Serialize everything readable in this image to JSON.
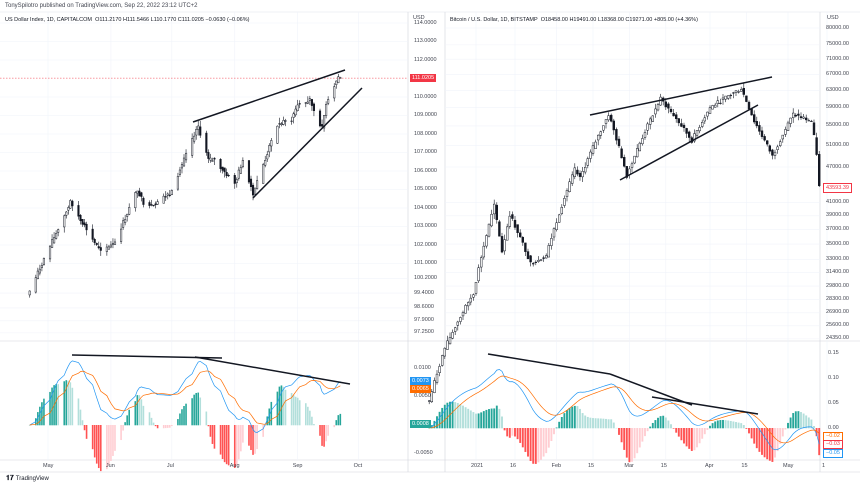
{
  "publisher": "TonySpilotro published on TradingView.com, Sep 22, 2022 23:12 UTC+2",
  "footer": {
    "brand": "TradingView",
    "logo_icon": "tradingview-logo-icon"
  },
  "colors": {
    "up": "#26a69a",
    "down": "#ef5350",
    "candle": "#131722",
    "macd": "#2196f3",
    "signal": "#ff6d00",
    "hist_up": "#26a69a",
    "hist_up_fade": "#b2dfdb",
    "hist_dn": "#ff5252",
    "hist_dn_fade": "#ffcdd2",
    "trendline": "#131722"
  },
  "chart_data": [
    {
      "type": "candlestick",
      "title": "US Dollar Index, 1D, CAPITALCOM",
      "legend": {
        "symbol": "US Dollar Index, 1D, CAPITALCOM",
        "open": "O111.2170",
        "high": "H111.5466",
        "low": "L110.1770",
        "close": "C111.0205",
        "change": "−0.0630 (−0.06%)"
      },
      "currency": "USD",
      "y_ticks": [
        "114.0000",
        "113.0000",
        "112.0000",
        "110.0000",
        "109.0000",
        "108.0000",
        "107.0000",
        "106.0000",
        "105.0000",
        "104.0000",
        "103.0000",
        "102.0000",
        "101.0000",
        "100.2000",
        "99.4000",
        "98.6000",
        "97.9000",
        "97.2500"
      ],
      "last_price_label": "111.0205",
      "x_ticks": [
        {
          "label": "May",
          "date": "2022-05-01"
        },
        {
          "label": "Jun",
          "date": "2022-06-01"
        },
        {
          "label": "Jul",
          "date": "2022-07-01"
        },
        {
          "label": "Aug",
          "date": "2022-08-01"
        },
        {
          "label": "Sep",
          "date": "2022-09-01"
        },
        {
          "label": "Oct",
          "date": "2022-10-01"
        }
      ],
      "close_keypoints": [
        [
          "2022-04-22",
          99.5
        ],
        [
          "2022-04-28",
          101.0
        ],
        [
          "2022-05-12",
          104.3
        ],
        [
          "2022-05-27",
          101.6
        ],
        [
          "2022-06-03",
          102.2
        ],
        [
          "2022-06-14",
          105.0
        ],
        [
          "2022-06-17",
          104.3
        ],
        [
          "2022-06-22",
          104.2
        ],
        [
          "2022-06-30",
          104.8
        ],
        [
          "2022-07-14",
          108.4
        ],
        [
          "2022-07-19",
          106.6
        ],
        [
          "2022-07-22",
          106.6
        ],
        [
          "2022-08-01",
          105.3
        ],
        [
          "2022-08-05",
          106.6
        ],
        [
          "2022-08-10",
          104.8
        ],
        [
          "2022-08-22",
          108.5
        ],
        [
          "2022-08-29",
          108.8
        ],
        [
          "2022-09-01",
          109.6
        ],
        [
          "2022-09-07",
          109.8
        ],
        [
          "2022-09-13",
          108.3
        ],
        [
          "2022-09-15",
          109.7
        ],
        [
          "2022-09-21",
          111.1
        ],
        [
          "2022-09-22",
          111.02
        ]
      ],
      "macd": {
        "y_ticks": [
          "0.0100",
          "0.0050",
          "-0.0050"
        ],
        "macd_label": "0.0073",
        "signal_label": "0.0065",
        "hist_label": "0.0008"
      }
    },
    {
      "type": "candlestick",
      "title": "Bitcoin / U.S. Dollar, 1D, BITSTAMP",
      "legend": {
        "symbol": "Bitcoin / U.S. Dollar, 1D, BITSTAMP",
        "open": "O18458.00",
        "high": "H19491.00",
        "low": "L18368.00",
        "close": "C19271.00",
        "change": "+805.00 (+4.36%)"
      },
      "currency": "USD",
      "log_scale": true,
      "y_ticks": [
        "80000.00",
        "75000.00",
        "71000.00",
        "67000.00",
        "63000.00",
        "59000.00",
        "55000.00",
        "51000.00",
        "47000.00",
        "41000.00",
        "39000.00",
        "37000.00",
        "35000.00",
        "33000.00",
        "31400.00",
        "29800.00",
        "28300.00",
        "26900.00",
        "25600.00",
        "24350.00"
      ],
      "last_price_label": "43593.39",
      "x_ticks": [
        {
          "label": "2021",
          "date": "2021-01-01"
        },
        {
          "label": "16",
          "date": "2021-01-16"
        },
        {
          "label": "Feb",
          "date": "2021-02-01"
        },
        {
          "label": "15",
          "date": "2021-02-15"
        },
        {
          "label": "Mar",
          "date": "2021-03-01"
        },
        {
          "label": "15",
          "date": "2021-03-15"
        },
        {
          "label": "Apr",
          "date": "2021-04-01"
        },
        {
          "label": "15",
          "date": "2021-04-15"
        },
        {
          "label": "May",
          "date": "2021-05-01"
        },
        {
          "label": "1",
          "date": "2021-05-16"
        }
      ],
      "close_keypoints": [
        [
          "2020-12-14",
          19200
        ],
        [
          "2020-12-20",
          23500
        ],
        [
          "2020-12-31",
          29000
        ],
        [
          "2021-01-08",
          40500
        ],
        [
          "2021-01-11",
          34000
        ],
        [
          "2021-01-14",
          39200
        ],
        [
          "2021-01-22",
          32500
        ],
        [
          "2021-01-28",
          33500
        ],
        [
          "2021-02-08",
          46500
        ],
        [
          "2021-02-10",
          45000
        ],
        [
          "2021-02-21",
          57500
        ],
        [
          "2021-02-28",
          45500
        ],
        [
          "2021-03-13",
          61000
        ],
        [
          "2021-03-25",
          52000
        ],
        [
          "2021-04-01",
          59000
        ],
        [
          "2021-04-13",
          63500
        ],
        [
          "2021-04-18",
          56000
        ],
        [
          "2021-04-25",
          49000
        ],
        [
          "2021-05-03",
          57500
        ],
        [
          "2021-05-10",
          56000
        ],
        [
          "2021-05-12",
          49500
        ],
        [
          "2021-05-13",
          43593
        ]
      ],
      "macd": {
        "y_ticks": [
          "0.15",
          "0.10",
          "0.05",
          "0.00"
        ],
        "macd_label": "−0.05",
        "signal_label": "−0.02",
        "hist_label": "−0.03"
      }
    }
  ]
}
